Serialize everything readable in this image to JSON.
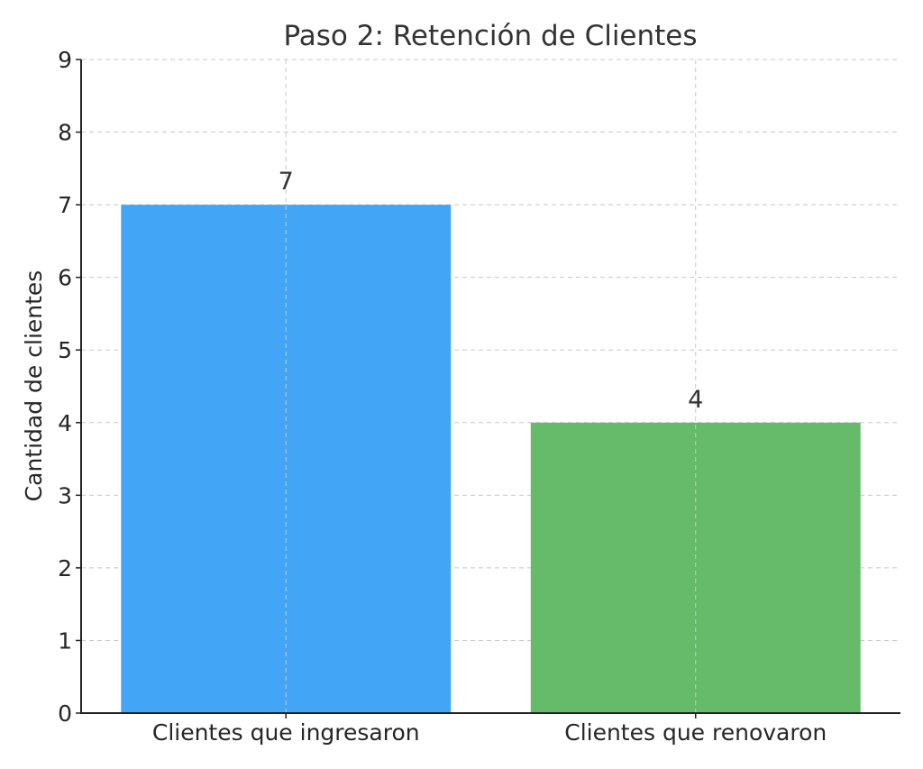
{
  "chart_data": {
    "type": "bar",
    "title": "Paso 2: Retención de Clientes",
    "xlabel": "",
    "ylabel": "Cantidad de clientes",
    "categories": [
      "Clientes que ingresaron",
      "Clientes que renovaron"
    ],
    "values": [
      7,
      4
    ],
    "data_labels": [
      "7",
      "4"
    ],
    "colors": [
      "#42a5f5",
      "#66bb6a"
    ],
    "ylim": [
      0,
      9
    ],
    "yticks": [
      "0",
      "1",
      "2",
      "3",
      "4",
      "5",
      "6",
      "7",
      "8",
      "9"
    ],
    "grid": true
  }
}
